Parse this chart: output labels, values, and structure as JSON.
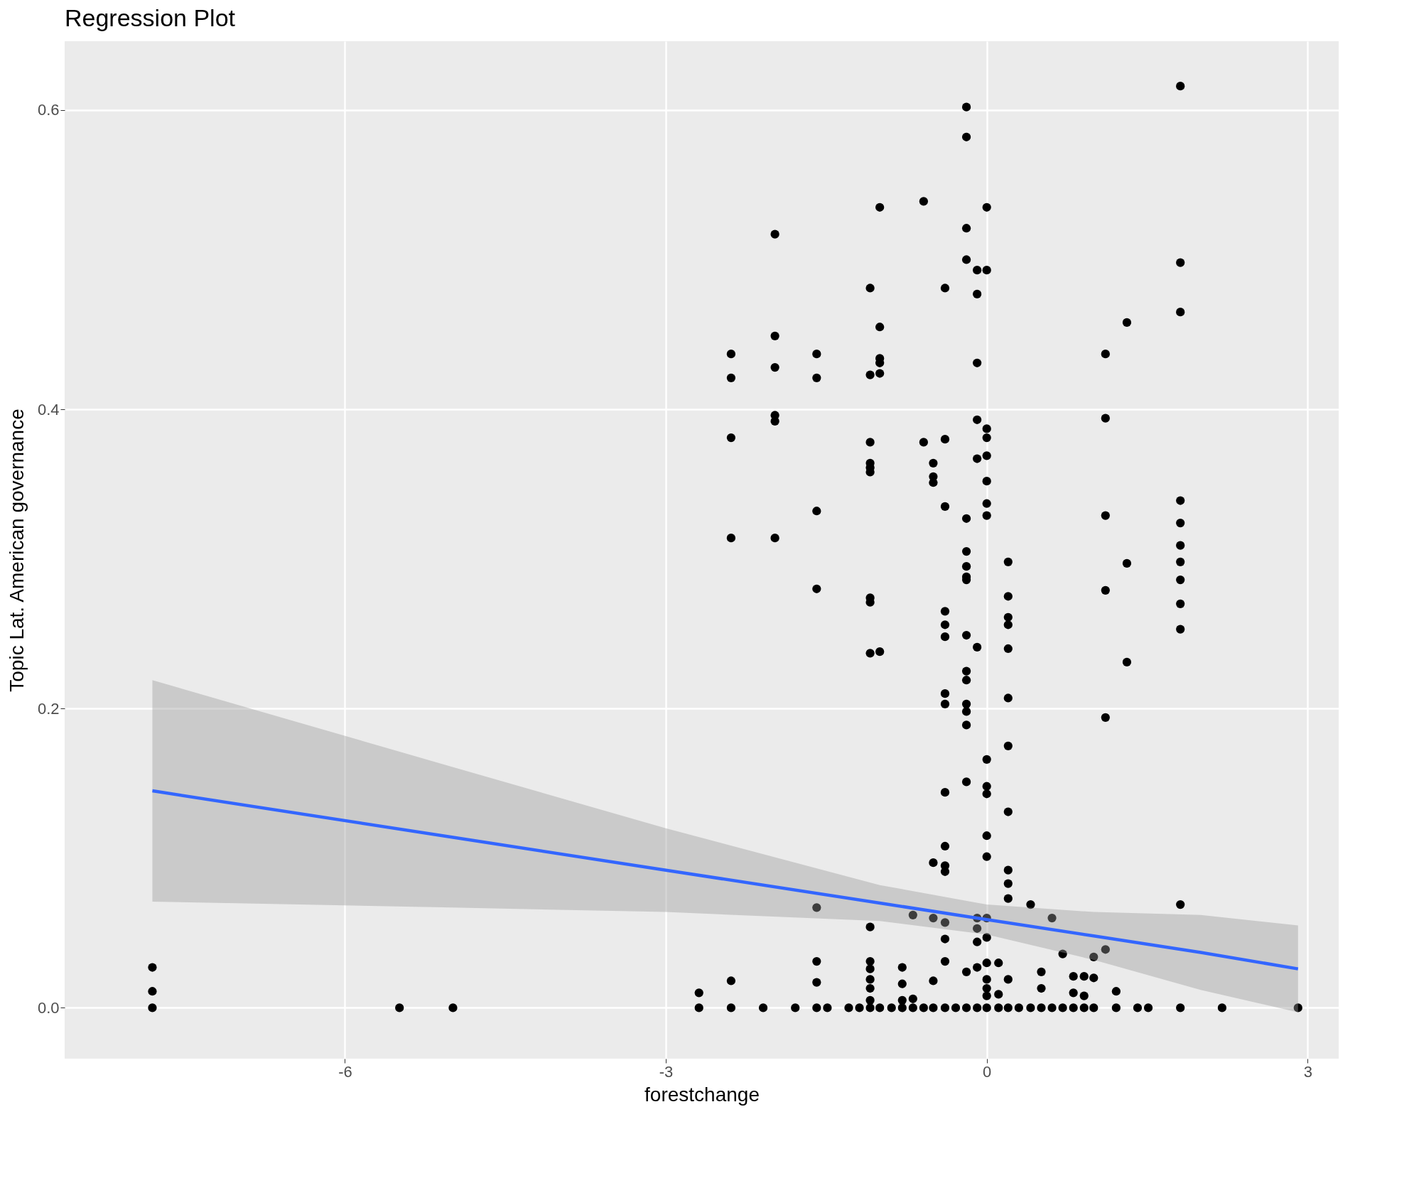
{
  "chart_data": {
    "type": "scatter",
    "title": "Regression Plot",
    "xlabel": "forestchange",
    "ylabel": "Topic Lat. American governance",
    "xlim": [
      -8.62,
      3.29
    ],
    "ylim": [
      -0.034,
      0.646
    ],
    "xticks": [
      -6,
      -3,
      0,
      3
    ],
    "yticks": [
      {
        "value": 0,
        "label": "0.0"
      },
      {
        "value": 0.2,
        "label": "0.2"
      },
      {
        "value": 0.4,
        "label": "0.4"
      },
      {
        "value": 0.6,
        "label": "0.6"
      }
    ],
    "grid": true,
    "series": [
      {
        "type": "scatter",
        "color": "#000000",
        "marker": "circle",
        "x": [
          -7.8,
          -7.8,
          -7.8,
          -5.49,
          -4.99,
          -2.69,
          -2.69,
          -2.39,
          -2.39,
          -2.39,
          -2.39,
          -2.39,
          -2.39,
          -2.09,
          -1.98,
          -1.98,
          -1.98,
          -1.98,
          -1.98,
          -1.98,
          -1.79,
          -1.59,
          -1.59,
          -1.59,
          -1.59,
          -1.59,
          -1.59,
          -1.59,
          -1.59,
          -1.49,
          -1.29,
          -1.19,
          -1.09,
          -1.09,
          -1.09,
          -1.09,
          -1.09,
          -1.09,
          -1.09,
          -1.09,
          -1.09,
          -1.09,
          -1.09,
          -1.09,
          -1.09,
          -1.09,
          -1.09,
          -1.09,
          -1.0,
          -1.0,
          -1.0,
          -1.0,
          -1.0,
          -1.0,
          -1.0,
          -0.89,
          -0.79,
          -0.79,
          -0.79,
          -0.79,
          -0.69,
          -0.69,
          -0.69,
          -0.59,
          -0.59,
          -0.59,
          -0.5,
          -0.5,
          -0.5,
          -0.5,
          -0.5,
          -0.5,
          -0.5,
          -0.39,
          -0.39,
          -0.39,
          -0.39,
          -0.39,
          -0.39,
          -0.39,
          -0.39,
          -0.39,
          -0.39,
          -0.39,
          -0.39,
          -0.39,
          -0.39,
          -0.39,
          -0.39,
          -0.29,
          -0.19,
          -0.19,
          -0.19,
          -0.19,
          -0.19,
          -0.19,
          -0.19,
          -0.19,
          -0.19,
          -0.19,
          -0.19,
          -0.19,
          -0.19,
          -0.19,
          -0.19,
          -0.19,
          -0.19,
          -0.19,
          -0.09,
          -0.09,
          -0.09,
          -0.09,
          -0.09,
          -0.09,
          -0.09,
          -0.09,
          -0.09,
          -0.09,
          -0.09,
          0,
          0,
          0,
          0,
          0,
          0,
          0,
          0,
          0,
          0,
          0,
          0,
          0,
          0,
          0,
          0,
          0,
          0,
          0,
          0,
          0.11,
          0.11,
          0.11,
          0.2,
          0.2,
          0.2,
          0.2,
          0.2,
          0.2,
          0.2,
          0.2,
          0.2,
          0.2,
          0.2,
          0.2,
          0.2,
          0.3,
          0.41,
          0.41,
          0.51,
          0.51,
          0.51,
          0.61,
          0.61,
          0.71,
          0.71,
          0.81,
          0.81,
          0.81,
          0.91,
          0.91,
          0.91,
          1.0,
          1.0,
          1.0,
          1.11,
          1.11,
          1.11,
          1.11,
          1.11,
          1.11,
          1.21,
          1.21,
          1.31,
          1.31,
          1.31,
          1.41,
          1.51,
          1.81,
          1.81,
          1.81,
          1.81,
          1.81,
          1.81,
          1.81,
          1.81,
          1.81,
          1.81,
          1.81,
          1.81,
          2.2,
          2.91
        ],
        "values": [
          0.027,
          0.011,
          0,
          0,
          0,
          0.01,
          0,
          0.437,
          0.421,
          0.381,
          0.314,
          0.018,
          0,
          0,
          0.517,
          0.449,
          0.428,
          0.396,
          0.392,
          0.314,
          0,
          0.437,
          0.421,
          0.332,
          0.28,
          0.067,
          0.031,
          0.017,
          0,
          0,
          0,
          0,
          0.481,
          0.423,
          0.378,
          0.364,
          0.361,
          0.358,
          0.274,
          0.271,
          0.237,
          0.054,
          0.031,
          0.026,
          0.019,
          0.013,
          0.005,
          0,
          0.535,
          0.455,
          0.434,
          0.431,
          0.424,
          0.238,
          0,
          0,
          0.027,
          0.016,
          0.005,
          0,
          0.062,
          0.006,
          0,
          0.539,
          0.378,
          0,
          0.364,
          0.355,
          0.351,
          0.097,
          0.06,
          0.018,
          0,
          0.481,
          0.38,
          0.335,
          0.265,
          0.256,
          0.248,
          0.21,
          0.203,
          0.144,
          0.108,
          0.095,
          0.091,
          0.057,
          0.046,
          0.031,
          0,
          0,
          0.602,
          0.582,
          0.521,
          0.5,
          0.327,
          0.305,
          0.295,
          0.288,
          0.286,
          0.249,
          0.225,
          0.219,
          0.203,
          0.198,
          0.189,
          0.151,
          0.024,
          0,
          0.493,
          0.477,
          0.431,
          0.393,
          0.367,
          0.241,
          0.06,
          0.053,
          0.044,
          0.027,
          0,
          0.535,
          0.493,
          0.387,
          0.381,
          0.369,
          0.352,
          0.337,
          0.329,
          0.166,
          0.148,
          0.143,
          0.115,
          0.101,
          0.06,
          0.047,
          0.03,
          0.019,
          0.013,
          0.008,
          0,
          0.03,
          0.009,
          0,
          0.298,
          0.275,
          0.261,
          0.256,
          0.24,
          0.207,
          0.175,
          0.131,
          0.092,
          0.083,
          0.073,
          0.019,
          0,
          0,
          0.069,
          0,
          0.024,
          0.013,
          0,
          0.06,
          0,
          0.036,
          0,
          0.021,
          0.01,
          0,
          0.021,
          0.008,
          0,
          0.034,
          0.02,
          0,
          0.437,
          0.394,
          0.329,
          0.279,
          0.194,
          0.039,
          0.011,
          0,
          0.458,
          0.297,
          0.231,
          0,
          0,
          0.616,
          0.498,
          0.465,
          0.339,
          0.324,
          0.309,
          0.298,
          0.286,
          0.27,
          0.253,
          0.069,
          0,
          0,
          0
        ]
      },
      {
        "type": "line",
        "color": "#3366ff",
        "x": [
          -7.8,
          -5,
          -3,
          -1,
          0,
          1,
          2,
          2.91
        ],
        "values": [
          0.145,
          0.114,
          0.092,
          0.07,
          0.059,
          0.048,
          0.037,
          0.026
        ],
        "lower": [
          0.071,
          0.067,
          0.064,
          0.058,
          0.049,
          0.032,
          0.012,
          -0.003
        ],
        "upper": [
          0.219,
          0.161,
          0.12,
          0.082,
          0.069,
          0.064,
          0.062,
          0.055
        ]
      }
    ]
  }
}
